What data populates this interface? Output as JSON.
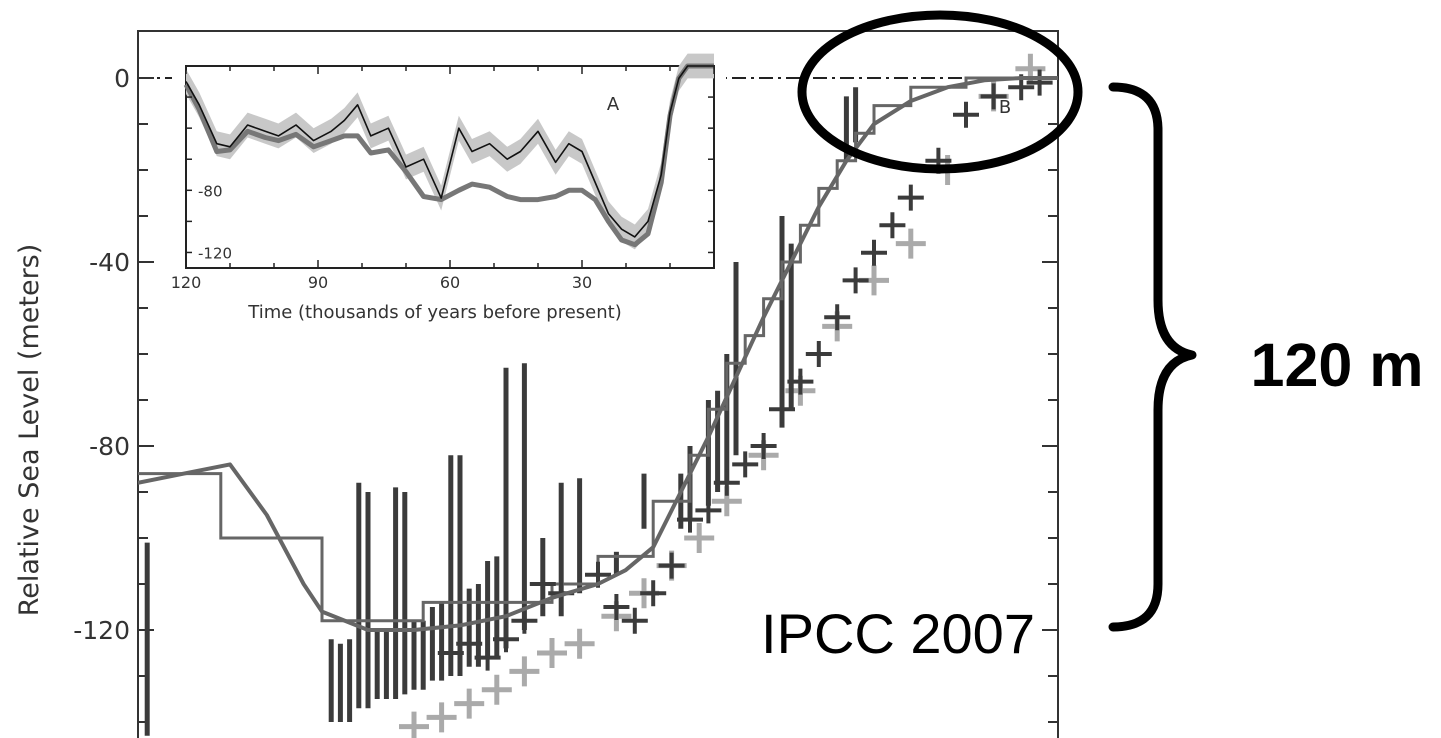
{
  "chart_data": {
    "type": "line",
    "ylabel": "Relative Sea Level (meters)",
    "yticks": [
      "0",
      "-40",
      "-80",
      "-120"
    ],
    "ylim": [
      -143,
      11
    ],
    "panel_label": "B",
    "main_curve": {
      "x": [
        0,
        0.05,
        0.1,
        0.14,
        0.18,
        0.2,
        0.25,
        0.3,
        0.35,
        0.4,
        0.45,
        0.5,
        0.53,
        0.56,
        0.59,
        0.62,
        0.65,
        0.68,
        0.71,
        0.74,
        0.77,
        0.8,
        0.84,
        0.88,
        0.92,
        0.96,
        1.0
      ],
      "y": [
        -88,
        -86,
        -84,
        -95,
        -110,
        -116,
        -120,
        -120,
        -119,
        -117,
        -113,
        -110,
        -107,
        -102,
        -90,
        -78,
        -65,
        -52,
        -40,
        -28,
        -18,
        -10,
        -5,
        -2,
        -0.5,
        0,
        0
      ]
    },
    "step_record": {
      "x": [
        0,
        0.09,
        0.09,
        0.2,
        0.2,
        0.31,
        0.31,
        0.45,
        0.45,
        0.5,
        0.5,
        0.56,
        0.56,
        0.6,
        0.6,
        0.62,
        0.62,
        0.64,
        0.64,
        0.66,
        0.66,
        0.68,
        0.68,
        0.7,
        0.7,
        0.72,
        0.72,
        0.74,
        0.74,
        0.76,
        0.76,
        0.78,
        0.78,
        0.8,
        0.8,
        0.84,
        0.84,
        0.9,
        0.9,
        1.0
      ],
      "y": [
        -86,
        -86,
        -100,
        -100,
        -118,
        -118,
        -114,
        -114,
        -110,
        -110,
        -104,
        -104,
        -92,
        -92,
        -82,
        -82,
        -72,
        -72,
        -62,
        -62,
        -56,
        -56,
        -48,
        -48,
        -40,
        -40,
        -32,
        -32,
        -24,
        -24,
        -18,
        -18,
        -12,
        -12,
        -6,
        -6,
        -2,
        -2,
        0,
        0
      ]
    },
    "coral_bars": {
      "x": [
        0.01,
        0.21,
        0.22,
        0.23,
        0.24,
        0.25,
        0.26,
        0.27,
        0.28,
        0.29,
        0.3,
        0.31,
        0.32,
        0.33,
        0.34,
        0.35,
        0.36,
        0.37,
        0.38,
        0.39,
        0.4,
        0.42,
        0.44,
        0.46,
        0.48,
        0.52,
        0.55,
        0.59,
        0.6,
        0.62,
        0.63,
        0.64,
        0.65,
        0.7,
        0.71,
        0.77,
        0.78
      ],
      "top": [
        -101,
        -122,
        -123,
        -122,
        -88,
        -90,
        -120,
        -120,
        -89,
        -90,
        -118,
        -118,
        -115,
        -114,
        -82,
        -82,
        -111,
        -110,
        -105,
        -104,
        -63,
        -62,
        -100,
        -88,
        -87,
        -103,
        -86,
        -86,
        -80,
        -70,
        -68,
        -60,
        -40,
        -30,
        -36,
        -4,
        -2
      ],
      "bottom": [
        -143,
        -140,
        -140,
        -140,
        -137,
        -137,
        -135,
        -135,
        -135,
        -134,
        -133,
        -133,
        -131,
        -131,
        -130,
        -130,
        -128,
        -128,
        -126,
        -126,
        -124,
        -120,
        -117,
        -117,
        -112,
        -108,
        -98,
        -98,
        -96,
        -93,
        -90,
        -88,
        -82,
        -76,
        -72,
        -18,
        -14
      ]
    },
    "crosses_dark": {
      "x": [
        0.34,
        0.36,
        0.38,
        0.4,
        0.42,
        0.44,
        0.46,
        0.5,
        0.52,
        0.54,
        0.56,
        0.58,
        0.6,
        0.62,
        0.64,
        0.66,
        0.68,
        0.7,
        0.72,
        0.74,
        0.76,
        0.78,
        0.8,
        0.82,
        0.84,
        0.87,
        0.9,
        0.93,
        0.96,
        0.98
      ],
      "y": [
        -125,
        -123,
        -126,
        -122,
        -118,
        -110,
        -112,
        -108,
        -115,
        -118,
        -112,
        -106,
        -96,
        -94,
        -88,
        -84,
        -80,
        -72,
        -66,
        -60,
        -52,
        -44,
        -38,
        -32,
        -26,
        -18,
        -8,
        -4,
        -2,
        -1
      ]
    },
    "crosses_light": {
      "x": [
        0.3,
        0.33,
        0.36,
        0.39,
        0.42,
        0.45,
        0.48,
        0.52,
        0.55,
        0.58,
        0.61,
        0.64,
        0.68,
        0.72,
        0.76,
        0.8,
        0.84,
        0.88,
        0.93,
        0.97
      ],
      "y": [
        -141,
        -139,
        -136,
        -133,
        -129,
        -125,
        -123,
        -117,
        -112,
        -106,
        -100,
        -92,
        -82,
        -68,
        -54,
        -44,
        -36,
        -20,
        -4,
        2
      ]
    },
    "inset": {
      "label": "A",
      "xlabel": "Time (thousands of years before present)",
      "xticks": [
        "120",
        "90",
        "60",
        "30"
      ],
      "xtick_values": [
        120,
        90,
        60,
        30
      ],
      "yticks": [
        "-80",
        "-120"
      ],
      "ytick_values": [
        -80,
        -120
      ],
      "xlim": [
        120,
        0
      ],
      "ylim": [
        -130,
        0
      ],
      "series_thin": {
        "x": [
          120,
          117,
          113,
          110,
          106,
          102,
          99,
          95,
          91,
          87,
          84,
          81,
          78,
          74,
          70,
          66,
          62,
          58,
          55,
          51,
          47,
          44,
          40,
          36,
          33,
          30,
          27,
          24,
          21,
          18,
          15,
          12,
          10,
          8,
          6,
          4,
          0
        ],
        "y": [
          -10,
          -25,
          -50,
          -52,
          -38,
          -42,
          -45,
          -38,
          -48,
          -42,
          -35,
          -25,
          -45,
          -40,
          -65,
          -60,
          -85,
          -40,
          -55,
          -50,
          -60,
          -55,
          -42,
          -62,
          -50,
          -55,
          -75,
          -95,
          -105,
          -110,
          -100,
          -70,
          -30,
          -8,
          0,
          0,
          0
        ]
      },
      "series_thick": {
        "x": [
          120,
          117,
          113,
          110,
          106,
          102,
          99,
          95,
          91,
          87,
          84,
          81,
          78,
          74,
          70,
          66,
          62,
          58,
          55,
          51,
          47,
          44,
          40,
          36,
          33,
          30,
          27,
          24,
          21,
          18,
          15,
          12,
          10,
          8,
          6,
          4,
          0
        ],
        "y": [
          -12,
          -28,
          -55,
          -54,
          -42,
          -46,
          -48,
          -44,
          -52,
          -48,
          -45,
          -45,
          -56,
          -54,
          -68,
          -84,
          -86,
          -80,
          -76,
          -78,
          -84,
          -86,
          -86,
          -84,
          -80,
          -80,
          -86,
          -100,
          -112,
          -115,
          -108,
          -75,
          -32,
          -8,
          0,
          0,
          0
        ]
      }
    }
  },
  "annotations": {
    "amplitude_label": "120 m",
    "source_label": "IPCC 2007"
  },
  "colors": {
    "dark": "#3b3b3b",
    "mid": "#666666",
    "light": "#aaaaaa",
    "band": "#c8c8c8"
  }
}
